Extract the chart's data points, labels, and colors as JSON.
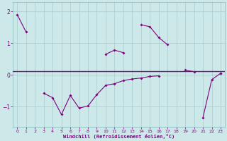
{
  "xlabel": "Windchill (Refroidissement éolien,°C)",
  "bg_color": "#cce8e8",
  "line_color": "#800080",
  "line1_y": [
    1.9,
    1.35,
    null,
    null,
    null,
    null,
    null,
    null,
    null,
    null,
    0.65,
    0.78,
    0.7,
    null,
    1.58,
    1.52,
    1.18,
    0.95,
    null,
    0.15,
    0.1,
    null,
    null,
    0.05
  ],
  "line2_y": [
    null,
    null,
    null,
    -0.58,
    -0.72,
    -1.25,
    -0.65,
    -1.05,
    -0.98,
    -0.62,
    -0.33,
    -0.28,
    -0.18,
    -0.13,
    -0.1,
    -0.05,
    -0.03,
    null,
    null,
    null,
    null,
    -1.35,
    -0.15,
    0.05
  ],
  "hline_y": 0.12,
  "ylim": [
    -1.65,
    2.3
  ],
  "xlim": [
    -0.5,
    23.5
  ],
  "yticks": [
    -1,
    0,
    1,
    2
  ],
  "xticks": [
    0,
    1,
    2,
    3,
    4,
    5,
    6,
    7,
    8,
    9,
    10,
    11,
    12,
    13,
    14,
    15,
    16,
    17,
    18,
    19,
    20,
    21,
    22,
    23
  ],
  "xtick_labels": [
    "0",
    "1",
    "2",
    "3",
    "4",
    "5",
    "6",
    "7",
    "8",
    "9",
    "10",
    "11",
    "12",
    "13",
    "14",
    "15",
    "16",
    "17",
    "18",
    "19",
    "20",
    "21",
    "22",
    "23"
  ]
}
